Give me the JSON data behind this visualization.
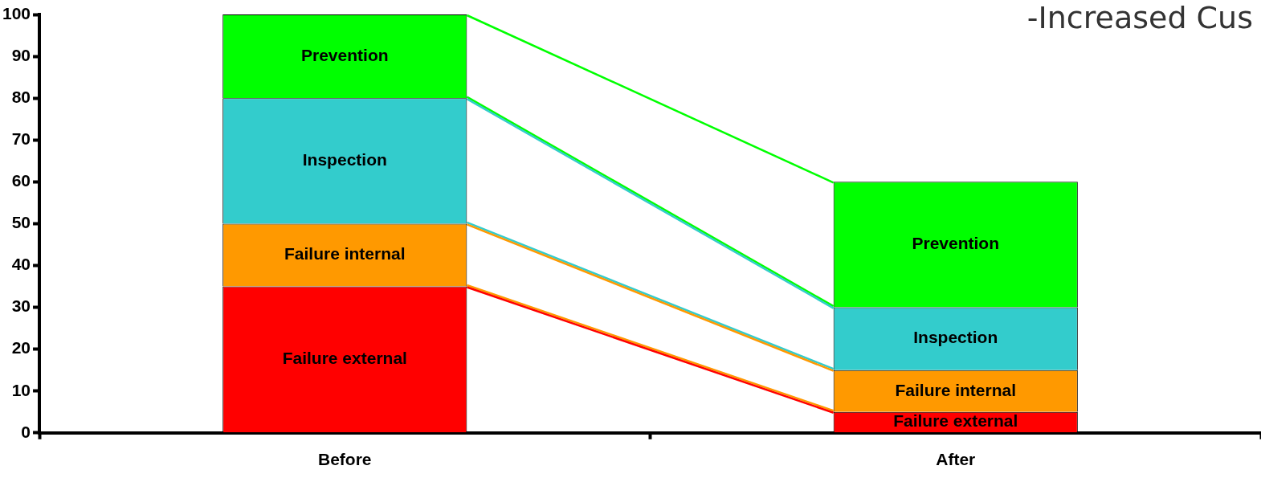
{
  "chart_data": {
    "type": "bar",
    "stacked": true,
    "categories": [
      "Before",
      "After"
    ],
    "series": [
      {
        "name": "Failure external",
        "color": "#ff0000",
        "values": [
          35,
          5
        ]
      },
      {
        "name": "Failure internal",
        "color": "#ff9900",
        "values": [
          15,
          10
        ]
      },
      {
        "name": "Inspection",
        "color": "#33cccc",
        "values": [
          30,
          15
        ]
      },
      {
        "name": "Prevention",
        "color": "#00ff00",
        "values": [
          20,
          30
        ]
      }
    ],
    "ylim": [
      0,
      100
    ],
    "yticks": [
      0,
      10,
      20,
      30,
      40,
      50,
      60,
      70,
      80,
      90,
      100
    ],
    "grid": false,
    "legend": false,
    "annotations": [
      "-Increased Cus"
    ]
  }
}
